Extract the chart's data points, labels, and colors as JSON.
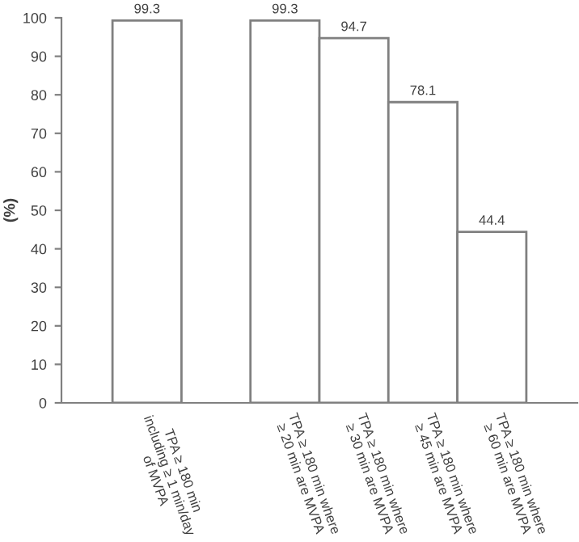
{
  "chart_data": {
    "type": "bar",
    "ylabel": "(%)",
    "categories": [
      "TPA ≥ 180 min\nincluding ≥ 1 min/day\nof MVPA",
      null,
      "TPA ≥ 180 min where\n≥ 20 min are MVPA",
      "TPA ≥ 180 min where\n≥ 30 min are MVPA",
      "TPA ≥ 180 min where\n≥ 45 min are MVPA",
      "TPA ≥ 180 min where\n≥ 60 min are MVPA"
    ],
    "values": [
      99.3,
      null,
      99.3,
      94.7,
      78.1,
      44.4
    ],
    "color": "#ffffff",
    "data_labels": true,
    "ylim": [
      0,
      100
    ],
    "yticks": [
      0,
      10,
      20,
      30,
      40,
      50,
      60,
      70,
      80,
      90,
      100
    ],
    "grid": false,
    "legend": false
  }
}
